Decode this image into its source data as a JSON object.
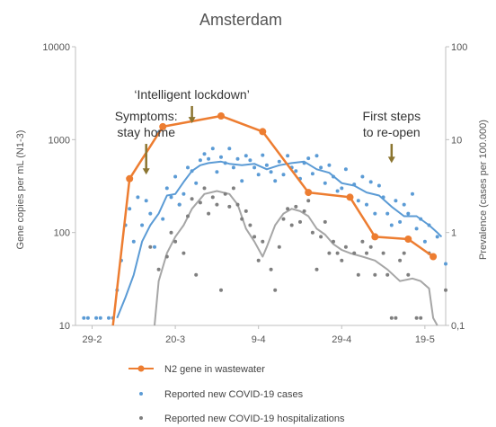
{
  "chart_data": {
    "type": "line",
    "title": "Amsterdam",
    "ylabel_left": "Gene copies per mL (N1-3)",
    "ylabel_right": "Prevalence (cases per 100.000)",
    "y_left_scale": "log",
    "y_left_range": [
      10,
      10000
    ],
    "y_left_ticks": [
      "10",
      "100",
      "1000",
      "10000"
    ],
    "y_right_scale": "log",
    "y_right_range": [
      0.1,
      100
    ],
    "y_right_ticks": [
      "0,1",
      "1",
      "10",
      "100"
    ],
    "x_range": [
      "2020-02-25",
      "2020-05-24"
    ],
    "x_ticks": [
      {
        "date": "2020-02-29",
        "label": "29-2"
      },
      {
        "date": "2020-03-20",
        "label": "20-3"
      },
      {
        "date": "2020-04-09",
        "label": "9-4"
      },
      {
        "date": "2020-04-29",
        "label": "29-4"
      },
      {
        "date": "2020-05-19",
        "label": "19-5"
      }
    ],
    "grid": false,
    "legend_position": "bottom",
    "colors": {
      "n2": "#ed7d31",
      "cases_dots": "#5b9bd5",
      "cases_line": "#5b9bd5",
      "hosp_dots": "#7f7f7f",
      "hosp_line": "#a6a6a6",
      "arrow": "#8b7530"
    },
    "legend": [
      {
        "label": "N2 gene in wastewater",
        "kind": "line-marker",
        "color": "#ed7d31"
      },
      {
        "label": "Reported new COVID-19 cases",
        "kind": "dot",
        "color": "#5b9bd5"
      },
      {
        "label": "Reported new COVID-19 hospitalizations",
        "kind": "dot",
        "color": "#7f7f7f"
      }
    ],
    "annotations": [
      {
        "lines": [
          "Symptoms:",
          "stay home"
        ],
        "date": "2020-03-13",
        "arrow_top": 900,
        "arrow_bottom": 420
      },
      {
        "lines": [
          "‘Intelligent lockdown’"
        ],
        "date": "2020-03-24",
        "arrow_top": 2300,
        "arrow_bottom": 1500
      },
      {
        "lines": [
          "First steps",
          "to re-open"
        ],
        "date": "2020-05-11",
        "arrow_top": 900,
        "arrow_bottom": 560
      }
    ],
    "series": [
      {
        "name": "N2 gene in wastewater",
        "axis": "left",
        "style": "line-marker",
        "points": [
          {
            "x": "2020-03-05",
            "y": 10
          },
          {
            "x": "2020-03-09",
            "y": 380
          },
          {
            "x": "2020-03-17",
            "y": 1380
          },
          {
            "x": "2020-03-31",
            "y": 1800
          },
          {
            "x": "2020-04-10",
            "y": 1220
          },
          {
            "x": "2020-04-21",
            "y": 270
          },
          {
            "x": "2020-05-01",
            "y": 240
          },
          {
            "x": "2020-05-07",
            "y": 90
          },
          {
            "x": "2020-05-15",
            "y": 85
          },
          {
            "x": "2020-05-21",
            "y": 55
          }
        ]
      },
      {
        "name": "Reported new COVID-19 cases",
        "axis": "right",
        "style": "dots",
        "points": [
          {
            "x": "2020-02-27",
            "y": 0.12
          },
          {
            "x": "2020-02-28",
            "y": 0.12
          },
          {
            "x": "2020-03-01",
            "y": 0.12
          },
          {
            "x": "2020-03-02",
            "y": 0.12
          },
          {
            "x": "2020-03-04",
            "y": 0.12
          },
          {
            "x": "2020-03-05",
            "y": 0.12
          },
          {
            "x": "2020-03-06",
            "y": 0.24
          },
          {
            "x": "2020-03-07",
            "y": 0.5
          },
          {
            "x": "2020-03-08",
            "y": 1.2
          },
          {
            "x": "2020-03-09",
            "y": 1.8
          },
          {
            "x": "2020-03-10",
            "y": 0.8
          },
          {
            "x": "2020-03-11",
            "y": 2.4
          },
          {
            "x": "2020-03-12",
            "y": 1.2
          },
          {
            "x": "2020-03-13",
            "y": 2.2
          },
          {
            "x": "2020-03-14",
            "y": 1.6
          },
          {
            "x": "2020-03-15",
            "y": 0.7
          },
          {
            "x": "2020-03-16",
            "y": 12
          },
          {
            "x": "2020-03-17",
            "y": 1.4
          },
          {
            "x": "2020-03-18",
            "y": 3
          },
          {
            "x": "2020-03-19",
            "y": 2.4
          },
          {
            "x": "2020-03-20",
            "y": 4
          },
          {
            "x": "2020-03-21",
            "y": 2
          },
          {
            "x": "2020-03-22",
            "y": 2.6
          },
          {
            "x": "2020-03-23",
            "y": 5
          },
          {
            "x": "2020-03-24",
            "y": 4.6
          },
          {
            "x": "2020-03-25",
            "y": 3.4
          },
          {
            "x": "2020-03-26",
            "y": 6
          },
          {
            "x": "2020-03-27",
            "y": 7
          },
          {
            "x": "2020-03-28",
            "y": 6.2
          },
          {
            "x": "2020-03-29",
            "y": 8
          },
          {
            "x": "2020-03-30",
            "y": 4.5
          },
          {
            "x": "2020-03-31",
            "y": 6.5
          },
          {
            "x": "2020-04-01",
            "y": 5.6
          },
          {
            "x": "2020-04-02",
            "y": 8
          },
          {
            "x": "2020-04-03",
            "y": 5
          },
          {
            "x": "2020-04-04",
            "y": 6.2
          },
          {
            "x": "2020-04-05",
            "y": 3.6
          },
          {
            "x": "2020-04-06",
            "y": 6.7
          },
          {
            "x": "2020-04-07",
            "y": 6
          },
          {
            "x": "2020-04-08",
            "y": 5
          },
          {
            "x": "2020-04-09",
            "y": 4.2
          },
          {
            "x": "2020-04-10",
            "y": 6.8
          },
          {
            "x": "2020-04-11",
            "y": 5.3
          },
          {
            "x": "2020-04-12",
            "y": 4.5
          },
          {
            "x": "2020-04-13",
            "y": 3.6
          },
          {
            "x": "2020-04-14",
            "y": 5.8
          },
          {
            "x": "2020-04-15",
            "y": 4.2
          },
          {
            "x": "2020-04-16",
            "y": 6.7
          },
          {
            "x": "2020-04-17",
            "y": 5
          },
          {
            "x": "2020-04-18",
            "y": 4.6
          },
          {
            "x": "2020-04-19",
            "y": 3.8
          },
          {
            "x": "2020-04-20",
            "y": 5.6
          },
          {
            "x": "2020-04-21",
            "y": 6.3
          },
          {
            "x": "2020-04-22",
            "y": 4.3
          },
          {
            "x": "2020-04-23",
            "y": 6.7
          },
          {
            "x": "2020-04-24",
            "y": 5
          },
          {
            "x": "2020-04-25",
            "y": 3.4
          },
          {
            "x": "2020-04-26",
            "y": 5.3
          },
          {
            "x": "2020-04-27",
            "y": 4
          },
          {
            "x": "2020-04-28",
            "y": 2.8
          },
          {
            "x": "2020-04-29",
            "y": 3
          },
          {
            "x": "2020-04-30",
            "y": 4.8
          },
          {
            "x": "2020-05-01",
            "y": 2.4
          },
          {
            "x": "2020-05-02",
            "y": 3.3
          },
          {
            "x": "2020-05-03",
            "y": 2.2
          },
          {
            "x": "2020-05-04",
            "y": 4
          },
          {
            "x": "2020-05-05",
            "y": 2
          },
          {
            "x": "2020-05-06",
            "y": 3.5
          },
          {
            "x": "2020-05-07",
            "y": 1.6
          },
          {
            "x": "2020-05-08",
            "y": 3.2
          },
          {
            "x": "2020-05-09",
            "y": 2.4
          },
          {
            "x": "2020-05-10",
            "y": 1.6
          },
          {
            "x": "2020-05-11",
            "y": 1.2
          },
          {
            "x": "2020-05-12",
            "y": 2.2
          },
          {
            "x": "2020-05-13",
            "y": 1.3
          },
          {
            "x": "2020-05-14",
            "y": 2
          },
          {
            "x": "2020-05-15",
            "y": 1.6
          },
          {
            "x": "2020-05-16",
            "y": 2.6
          },
          {
            "x": "2020-05-17",
            "y": 1.1
          },
          {
            "x": "2020-05-18",
            "y": 1.4
          },
          {
            "x": "2020-05-19",
            "y": 0.8
          },
          {
            "x": "2020-05-20",
            "y": 1.2
          },
          {
            "x": "2020-05-21",
            "y": 0.55
          },
          {
            "x": "2020-05-22",
            "y": 0.9
          },
          {
            "x": "2020-05-24",
            "y": 0.46
          }
        ]
      },
      {
        "name": "Reported new COVID-19 cases (trend)",
        "axis": "right",
        "style": "line",
        "points": [
          {
            "x": "2020-03-06",
            "y": 0.12
          },
          {
            "x": "2020-03-08",
            "y": 0.2
          },
          {
            "x": "2020-03-10",
            "y": 0.35
          },
          {
            "x": "2020-03-12",
            "y": 0.8
          },
          {
            "x": "2020-03-14",
            "y": 1.2
          },
          {
            "x": "2020-03-16",
            "y": 1.6
          },
          {
            "x": "2020-03-18",
            "y": 2.5
          },
          {
            "x": "2020-03-20",
            "y": 2.6
          },
          {
            "x": "2020-03-22",
            "y": 3.5
          },
          {
            "x": "2020-03-24",
            "y": 4.6
          },
          {
            "x": "2020-03-26",
            "y": 5.3
          },
          {
            "x": "2020-03-28",
            "y": 5.6
          },
          {
            "x": "2020-03-31",
            "y": 5.8
          },
          {
            "x": "2020-04-02",
            "y": 5.5
          },
          {
            "x": "2020-04-05",
            "y": 5.3
          },
          {
            "x": "2020-04-08",
            "y": 5.5
          },
          {
            "x": "2020-04-11",
            "y": 4.8
          },
          {
            "x": "2020-04-14",
            "y": 5.3
          },
          {
            "x": "2020-04-17",
            "y": 5.6
          },
          {
            "x": "2020-04-20",
            "y": 5.8
          },
          {
            "x": "2020-04-23",
            "y": 4.8
          },
          {
            "x": "2020-04-26",
            "y": 4.4
          },
          {
            "x": "2020-04-29",
            "y": 3.4
          },
          {
            "x": "2020-05-02",
            "y": 3.2
          },
          {
            "x": "2020-05-05",
            "y": 2.7
          },
          {
            "x": "2020-05-08",
            "y": 2.5
          },
          {
            "x": "2020-05-11",
            "y": 1.9
          },
          {
            "x": "2020-05-14",
            "y": 1.5
          },
          {
            "x": "2020-05-17",
            "y": 1.5
          },
          {
            "x": "2020-05-20",
            "y": 1.2
          },
          {
            "x": "2020-05-22",
            "y": 1
          },
          {
            "x": "2020-05-23",
            "y": 0.9
          }
        ]
      },
      {
        "name": "Reported new COVID-19 hospitalizations",
        "axis": "right",
        "style": "dots",
        "points": [
          {
            "x": "2020-03-14",
            "y": 0.7
          },
          {
            "x": "2020-03-16",
            "y": 0.4
          },
          {
            "x": "2020-03-18",
            "y": 0.55
          },
          {
            "x": "2020-03-19",
            "y": 1
          },
          {
            "x": "2020-03-20",
            "y": 0.8
          },
          {
            "x": "2020-03-21",
            "y": 2
          },
          {
            "x": "2020-03-22",
            "y": 0.6
          },
          {
            "x": "2020-03-23",
            "y": 1.5
          },
          {
            "x": "2020-03-24",
            "y": 2.3
          },
          {
            "x": "2020-03-25",
            "y": 0.35
          },
          {
            "x": "2020-03-26",
            "y": 2.1
          },
          {
            "x": "2020-03-27",
            "y": 3
          },
          {
            "x": "2020-03-28",
            "y": 1.6
          },
          {
            "x": "2020-03-29",
            "y": 2.4
          },
          {
            "x": "2020-03-30",
            "y": 2
          },
          {
            "x": "2020-03-31",
            "y": 0.24
          },
          {
            "x": "2020-04-01",
            "y": 2.6
          },
          {
            "x": "2020-04-02",
            "y": 1.9
          },
          {
            "x": "2020-04-03",
            "y": 3
          },
          {
            "x": "2020-04-04",
            "y": 2
          },
          {
            "x": "2020-04-05",
            "y": 1.4
          },
          {
            "x": "2020-04-06",
            "y": 1.7
          },
          {
            "x": "2020-04-07",
            "y": 1.2
          },
          {
            "x": "2020-04-08",
            "y": 0.9
          },
          {
            "x": "2020-04-09",
            "y": 0.5
          },
          {
            "x": "2020-04-10",
            "y": 0.8
          },
          {
            "x": "2020-04-12",
            "y": 0.4
          },
          {
            "x": "2020-04-13",
            "y": 0.24
          },
          {
            "x": "2020-04-14",
            "y": 0.7
          },
          {
            "x": "2020-04-15",
            "y": 1.4
          },
          {
            "x": "2020-04-16",
            "y": 1.8
          },
          {
            "x": "2020-04-17",
            "y": 1.2
          },
          {
            "x": "2020-04-18",
            "y": 1.9
          },
          {
            "x": "2020-04-19",
            "y": 1.3
          },
          {
            "x": "2020-04-20",
            "y": 1.7
          },
          {
            "x": "2020-04-21",
            "y": 2.2
          },
          {
            "x": "2020-04-22",
            "y": 1
          },
          {
            "x": "2020-04-23",
            "y": 0.4
          },
          {
            "x": "2020-04-24",
            "y": 0.9
          },
          {
            "x": "2020-04-25",
            "y": 1.3
          },
          {
            "x": "2020-04-26",
            "y": 0.6
          },
          {
            "x": "2020-04-27",
            "y": 0.8
          },
          {
            "x": "2020-04-28",
            "y": 0.6
          },
          {
            "x": "2020-04-29",
            "y": 0.5
          },
          {
            "x": "2020-04-30",
            "y": 0.7
          },
          {
            "x": "2020-05-02",
            "y": 0.6
          },
          {
            "x": "2020-05-03",
            "y": 0.35
          },
          {
            "x": "2020-05-04",
            "y": 0.8
          },
          {
            "x": "2020-05-05",
            "y": 0.6
          },
          {
            "x": "2020-05-06",
            "y": 0.7
          },
          {
            "x": "2020-05-07",
            "y": 0.35
          },
          {
            "x": "2020-05-09",
            "y": 0.6
          },
          {
            "x": "2020-05-10",
            "y": 0.35
          },
          {
            "x": "2020-05-11",
            "y": 0.12
          },
          {
            "x": "2020-05-12",
            "y": 0.12
          },
          {
            "x": "2020-05-13",
            "y": 0.5
          },
          {
            "x": "2020-05-14",
            "y": 0.6
          },
          {
            "x": "2020-05-15",
            "y": 0.35
          },
          {
            "x": "2020-05-17",
            "y": 0.12
          },
          {
            "x": "2020-05-18",
            "y": 0.12
          },
          {
            "x": "2020-05-20",
            "y": 0.6
          },
          {
            "x": "2020-05-24",
            "y": 0.24
          }
        ]
      },
      {
        "name": "Reported new COVID-19 hospitalizations (trend)",
        "axis": "right",
        "style": "line",
        "points": [
          {
            "x": "2020-03-15",
            "y": 0.1
          },
          {
            "x": "2020-03-16",
            "y": 0.3
          },
          {
            "x": "2020-03-18",
            "y": 0.6
          },
          {
            "x": "2020-03-20",
            "y": 0.9
          },
          {
            "x": "2020-03-22",
            "y": 1.2
          },
          {
            "x": "2020-03-24",
            "y": 1.8
          },
          {
            "x": "2020-03-27",
            "y": 2.6
          },
          {
            "x": "2020-03-30",
            "y": 2.8
          },
          {
            "x": "2020-04-02",
            "y": 2.6
          },
          {
            "x": "2020-04-04",
            "y": 2
          },
          {
            "x": "2020-04-06",
            "y": 1.1
          },
          {
            "x": "2020-04-08",
            "y": 0.8
          },
          {
            "x": "2020-04-10",
            "y": 0.55
          },
          {
            "x": "2020-04-11",
            "y": 0.7
          },
          {
            "x": "2020-04-13",
            "y": 1.2
          },
          {
            "x": "2020-04-15",
            "y": 1.6
          },
          {
            "x": "2020-04-17",
            "y": 1.8
          },
          {
            "x": "2020-04-19",
            "y": 1.7
          },
          {
            "x": "2020-04-21",
            "y": 1.5
          },
          {
            "x": "2020-04-23",
            "y": 1.1
          },
          {
            "x": "2020-04-25",
            "y": 0.95
          },
          {
            "x": "2020-04-27",
            "y": 0.75
          },
          {
            "x": "2020-04-29",
            "y": 0.65
          },
          {
            "x": "2020-05-01",
            "y": 0.6
          },
          {
            "x": "2020-05-04",
            "y": 0.55
          },
          {
            "x": "2020-05-07",
            "y": 0.5
          },
          {
            "x": "2020-05-10",
            "y": 0.4
          },
          {
            "x": "2020-05-13",
            "y": 0.3
          },
          {
            "x": "2020-05-16",
            "y": 0.32
          },
          {
            "x": "2020-05-18",
            "y": 0.3
          },
          {
            "x": "2020-05-20",
            "y": 0.25
          },
          {
            "x": "2020-05-21",
            "y": 0.12
          },
          {
            "x": "2020-05-22",
            "y": 0.1
          }
        ]
      }
    ]
  }
}
